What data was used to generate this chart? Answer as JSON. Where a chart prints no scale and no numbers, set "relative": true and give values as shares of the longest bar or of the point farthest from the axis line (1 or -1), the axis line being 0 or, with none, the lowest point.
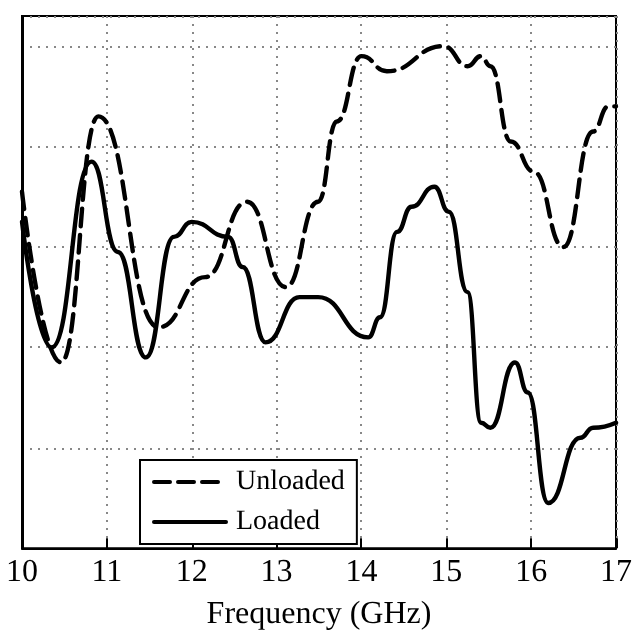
{
  "chart_data": {
    "type": "line",
    "xlabel": "Frequency (GHz)",
    "relative": true,
    "xlim": [
      10,
      17
    ],
    "xticks": [
      10,
      11,
      12,
      13,
      14,
      15,
      16,
      17
    ],
    "grid": true,
    "legend": "bottom left",
    "marker": "none",
    "series": [
      {
        "name": "Unloaded",
        "color": "#000000",
        "line_style": "dashed",
        "x": [
          10,
          10.46,
          10.9,
          11.61,
          12.16,
          12.65,
          13.11,
          13.49,
          13.71,
          14.0,
          14.3,
          14.97,
          15.25,
          15.41,
          15.52,
          15.76,
          16.03,
          16.38,
          16.73,
          16.91,
          17
        ],
        "values": [
          0.71,
          0.37,
          0.86,
          0.44,
          0.54,
          0.69,
          0.52,
          0.69,
          0.85,
          0.98,
          0.95,
          1,
          0.96,
          0.98,
          0.96,
          0.81,
          0.75,
          0.6,
          0.83,
          0.88,
          0.88
        ]
      },
      {
        "name": "Loaded",
        "color": "#000000",
        "line_style": "solid",
        "x": [
          10,
          10.35,
          10.82,
          11.13,
          11.46,
          11.79,
          12.0,
          12.43,
          12.6,
          12.87,
          13.27,
          13.49,
          14.08,
          14.22,
          14.42,
          14.59,
          14.86,
          15.03,
          15.25,
          15.41,
          15.52,
          15.81,
          15.96,
          16.2,
          16.58,
          16.73,
          17.0
        ],
        "values": [
          0.65,
          0.4,
          0.77,
          0.59,
          0.38,
          0.62,
          0.65,
          0.62,
          0.56,
          0.41,
          0.5,
          0.5,
          0.42,
          0.46,
          0.63,
          0.68,
          0.72,
          0.67,
          0.51,
          0.25,
          0.24,
          0.37,
          0.31,
          0.09,
          0.22,
          0.24,
          0.25
        ]
      }
    ]
  }
}
